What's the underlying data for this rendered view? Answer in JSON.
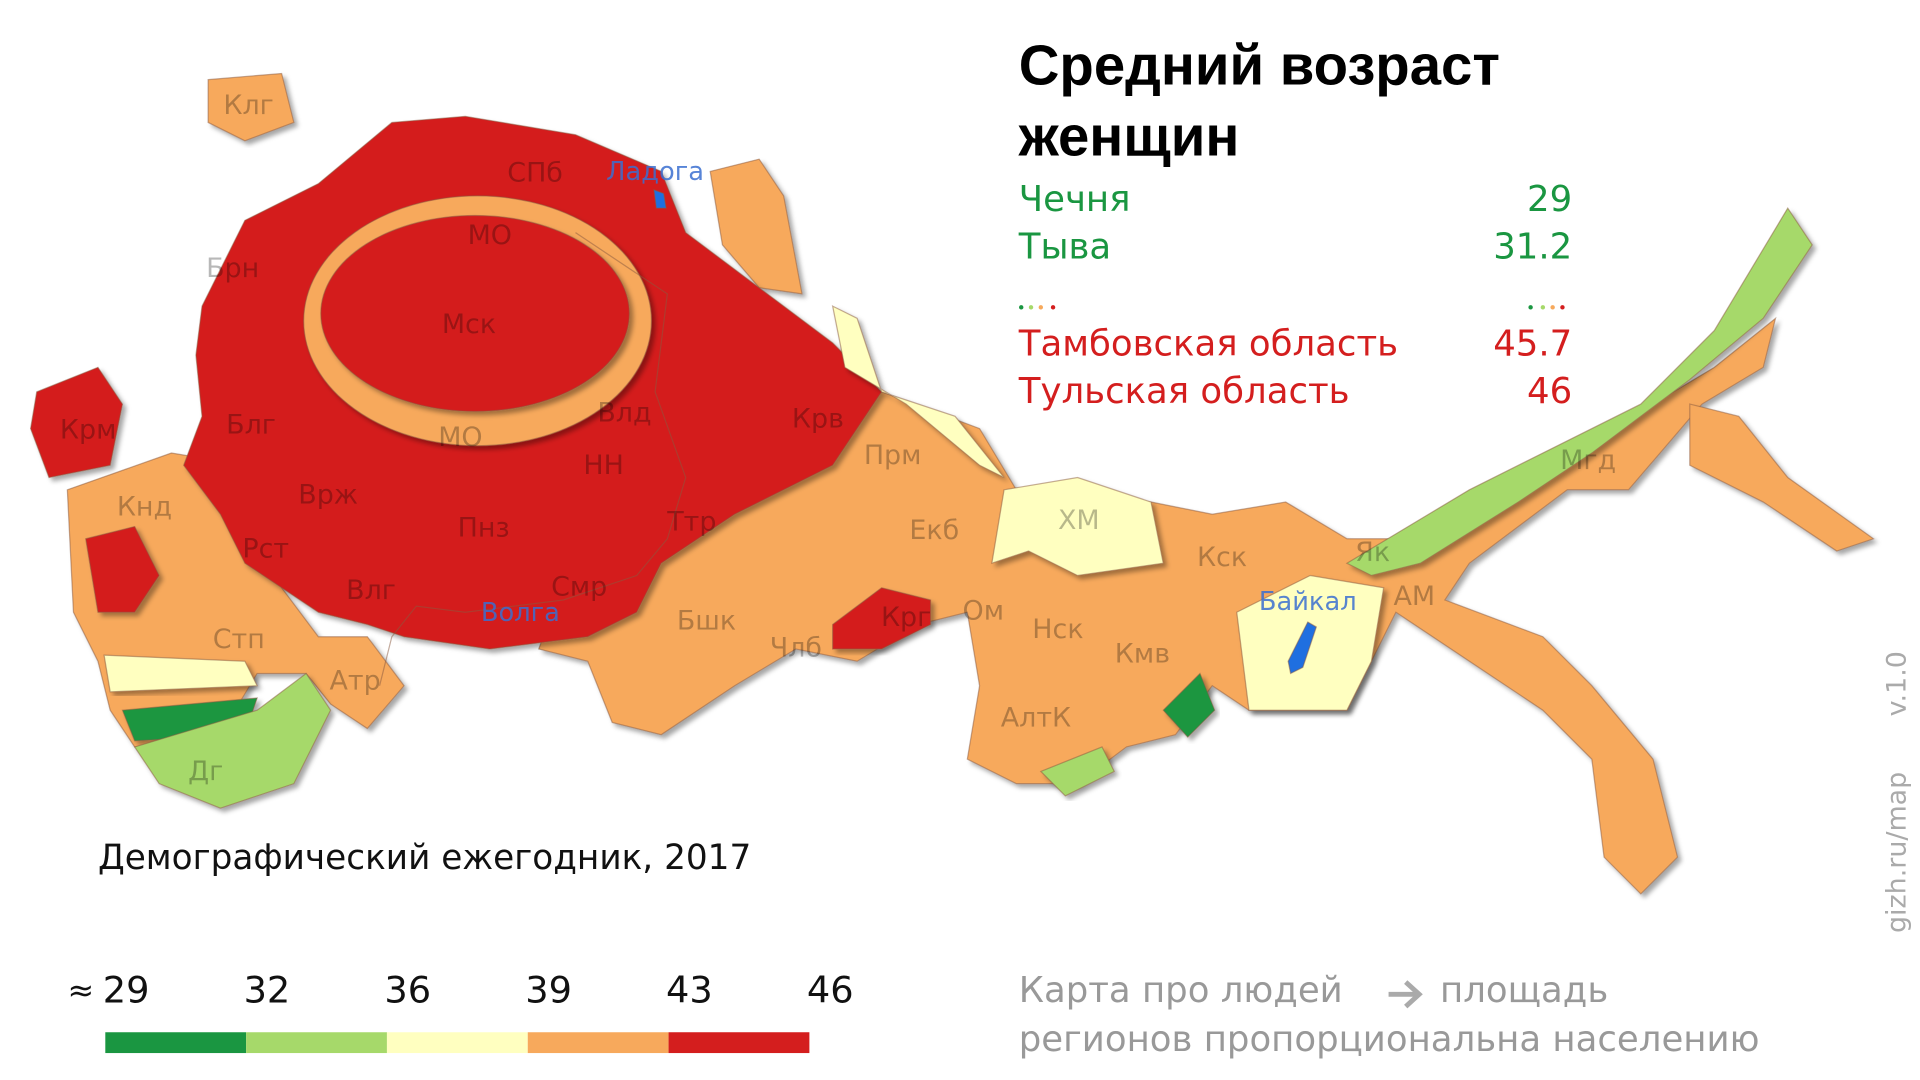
{
  "title_lines": [
    "Средний возраст",
    "женщин"
  ],
  "ranking": [
    {
      "name": "Чечня",
      "value": 29,
      "color": "#1a9641"
    },
    {
      "name": "Тыва",
      "value": 31.2,
      "color": "#1a9641"
    },
    {
      "name": "Тамбовская область",
      "value": 45.7,
      "color": "#d41e1e"
    },
    {
      "name": "Тульская область",
      "value": 46,
      "color": "#d41e1e"
    }
  ],
  "regions": [
    "Клг",
    "СПб",
    "МО",
    "Брн",
    "Мск",
    "МО",
    "Блг",
    "Крм",
    "Врж",
    "Пнз",
    "Влд",
    "НН",
    "Крв",
    "Прм",
    "Ттр",
    "Екб",
    "Кнд",
    "Рст",
    "Влг",
    "Смр",
    "Бшк",
    "Крг",
    "Ом",
    "ХМ",
    "Кск",
    "Члб",
    "Нск",
    "Кмв",
    "АлтК",
    "Стп",
    "Атр",
    "Дг",
    "Як",
    "АМ",
    "Мгд"
  ],
  "water": [
    "Ладога",
    "Волга",
    "Байкал"
  ],
  "source": "Демографический ежегодник, 2017",
  "legend": {
    "approx": "≈",
    "ticks": [
      29,
      32,
      36,
      39,
      43,
      46
    ],
    "colors": [
      "#1a9641",
      "#a6d96a",
      "#ffffc0",
      "#f7a95c",
      "#d41e1e"
    ]
  },
  "note": {
    "before_arrow": "Карта про людей",
    "after_arrow": "площадь",
    "line2": "регионов пропорциональна населению"
  },
  "credit": "gizh.ru/map",
  "version": "v.1.0"
}
